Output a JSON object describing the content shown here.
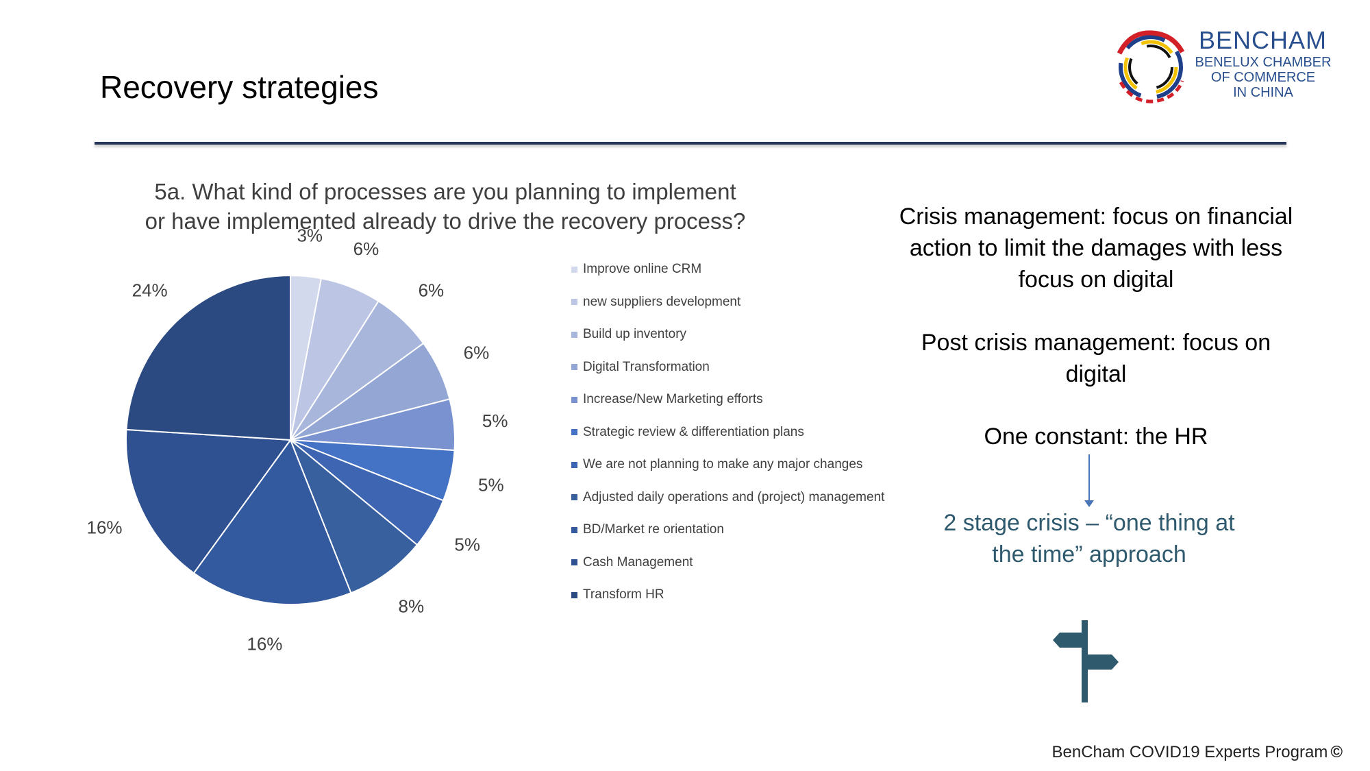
{
  "slide": {
    "title": "Recovery strategies",
    "footer": "BenCham COVID19 Experts Program",
    "footer_mark": "©"
  },
  "logo": {
    "name": "BENCHAM",
    "line1": "BENELUX CHAMBER",
    "line2": "OF COMMERCE",
    "line3": "IN CHINA"
  },
  "chart_data": {
    "type": "pie",
    "title_line1": "5a. What kind of processes are you planning to implement",
    "title_line2": "or have implemented already to drive the recovery process?",
    "categories": [
      "Improve online CRM",
      "new suppliers development",
      "Build up inventory",
      "Digital Transformation",
      "Increase/New Marketing efforts",
      "Strategic review & differentiation plans",
      "We are not planning to make any major changes",
      "Adjusted daily operations and (project) management",
      "BD/Market re orientation",
      "Cash Management",
      "Transform HR"
    ],
    "values": [
      3,
      6,
      6,
      6,
      5,
      5,
      5,
      8,
      16,
      16,
      24
    ],
    "labels": [
      "3%",
      "6%",
      "6%",
      "6%",
      "5%",
      "5%",
      "5%",
      "8%",
      "16%",
      "16%",
      "24%"
    ],
    "colors": [
      "#d3d9ec",
      "#bcc5e4",
      "#a8b6dc",
      "#93a6d4",
      "#7a92cf",
      "#4472c4",
      "#3d65b2",
      "#38609f",
      "#335a9e",
      "#2f5191",
      "#2b4a82"
    ],
    "legend_position": "right"
  },
  "notes": {
    "crisis": "Crisis management:  focus on financial action to limit the damages with less focus on digital",
    "post_crisis": "Post crisis management: focus on digital",
    "constant": "One constant: the HR",
    "conclusion": "2 stage crisis – “one thing at the time” approach"
  },
  "icons": {
    "logo": "dragon-ring-logo",
    "signpost": "signpost-icon"
  }
}
